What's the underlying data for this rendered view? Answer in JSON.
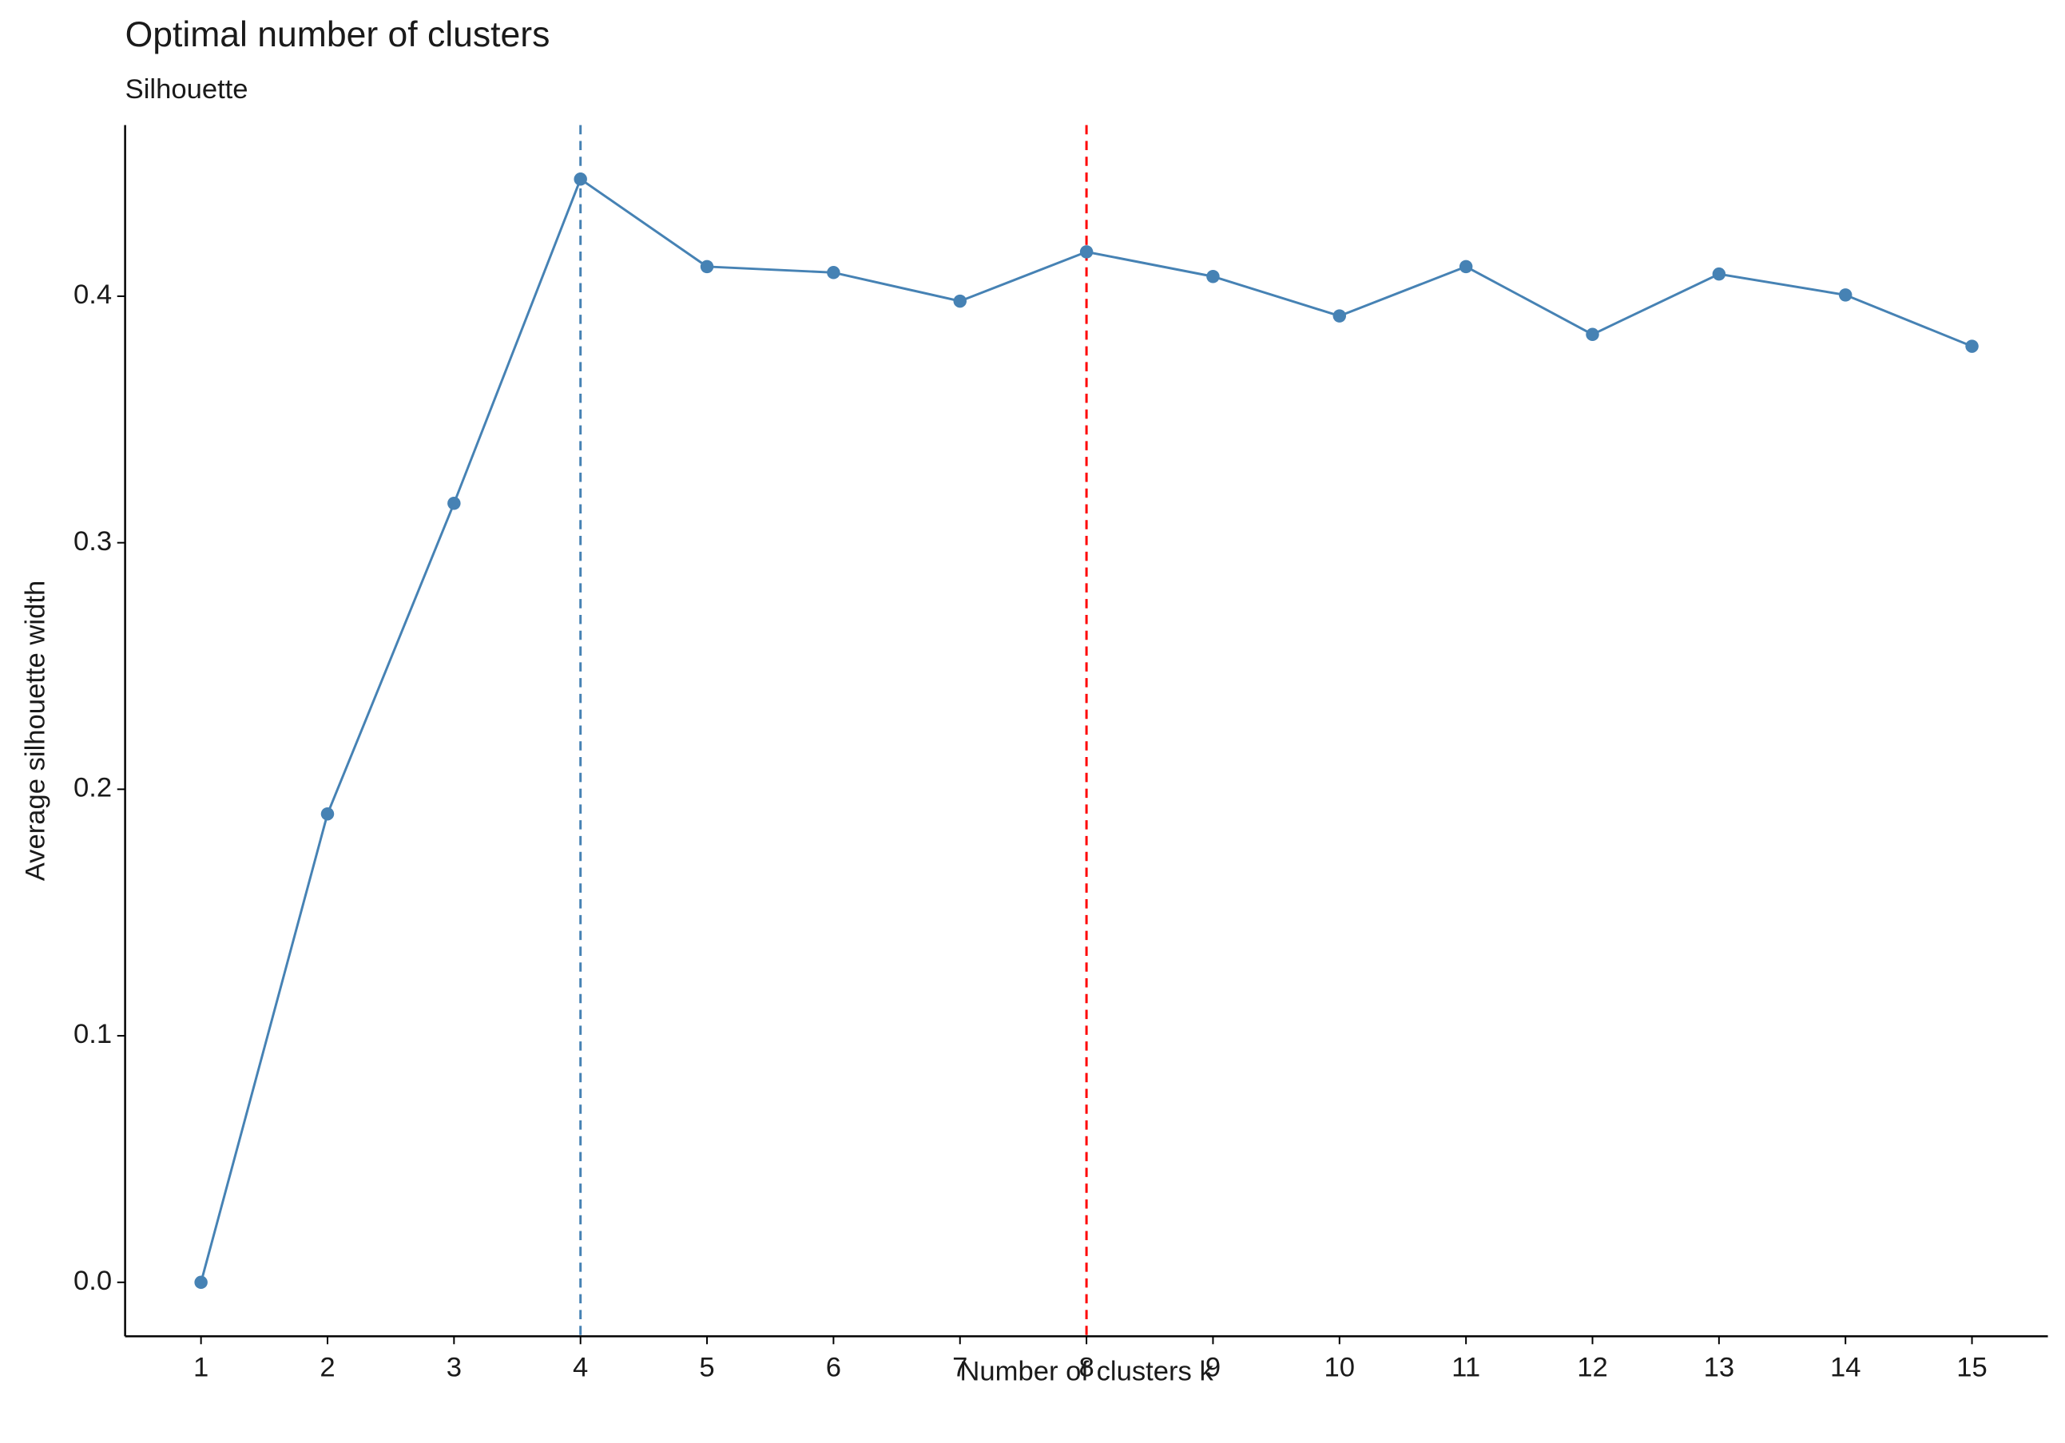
{
  "chart_data": {
    "type": "line",
    "title": "Optimal number of clusters",
    "subtitle": "Silhouette",
    "x_label": "Number of clusters k",
    "y_label": "Average silhouette width",
    "x": [
      1,
      2,
      3,
      4,
      5,
      6,
      7,
      8,
      9,
      10,
      11,
      12,
      13,
      14,
      15
    ],
    "series": [
      {
        "color": "#4682b4",
        "values": [
          0.0,
          0.19,
          0.316,
          0.4475,
          0.412,
          0.4096,
          0.398,
          0.418,
          0.408,
          0.392,
          0.412,
          0.3845,
          0.409,
          0.4005,
          0.3797
        ]
      }
    ],
    "vlines": [
      {
        "x": 4,
        "color": "#4682b4"
      },
      {
        "x": 8,
        "color": "#ff0000"
      }
    ],
    "xlim": [
      0.4,
      15.6
    ],
    "xticks": [
      1,
      2,
      3,
      4,
      5,
      6,
      7,
      8,
      9,
      10,
      11,
      12,
      13,
      14,
      15
    ],
    "ylim": [
      -0.0219,
      0.4694
    ],
    "yticks": [
      {
        "value": 0,
        "label": "0.0"
      },
      0.1,
      0.2,
      0.3,
      0.4
    ],
    "grid": false
  }
}
